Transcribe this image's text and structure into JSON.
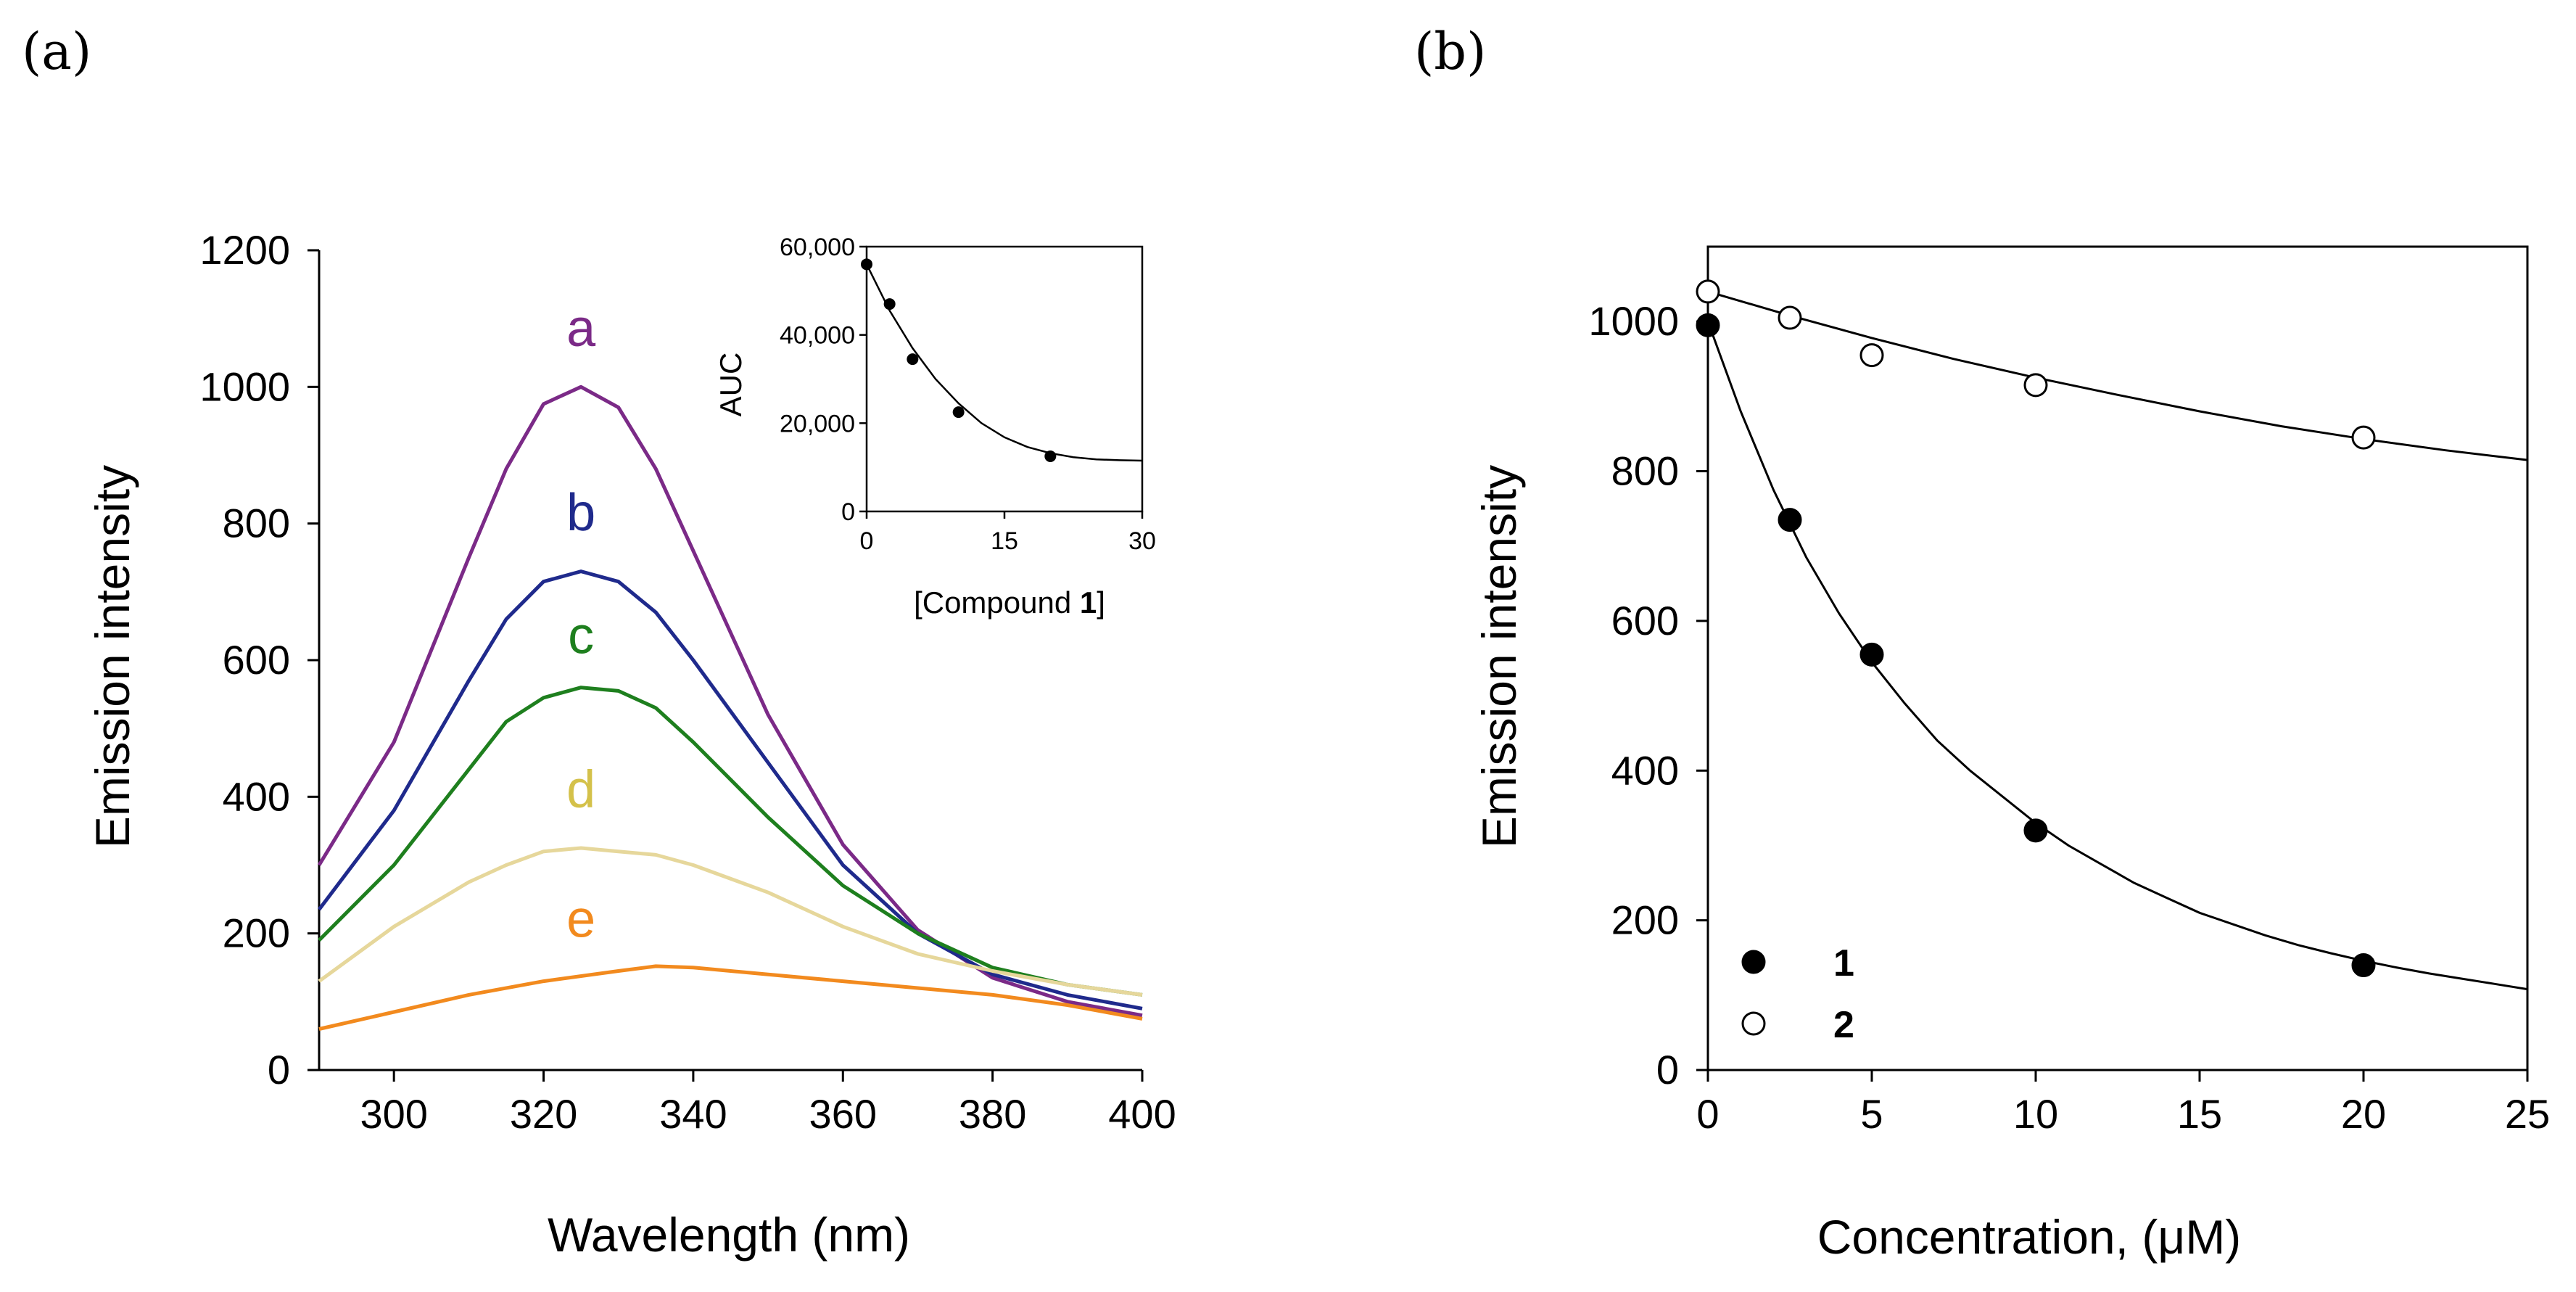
{
  "panels": {
    "a": {
      "label": "(a)"
    },
    "b": {
      "label": "(b)"
    }
  },
  "chart_data": [
    {
      "id": "a",
      "type": "line",
      "title": "",
      "xlabel": "Wavelength (nm)",
      "ylabel": "Emission intensity",
      "xlim": [
        290,
        400
      ],
      "ylim": [
        0,
        1200
      ],
      "xticks": [
        300,
        320,
        340,
        360,
        380,
        400
      ],
      "yticks": [
        0,
        200,
        400,
        600,
        800,
        1000,
        1200
      ],
      "grid": false,
      "series": [
        {
          "name": "a",
          "color": "#7B2A87",
          "x": [
            290,
            300,
            310,
            315,
            320,
            325,
            330,
            335,
            340,
            350,
            360,
            370,
            380,
            390,
            400
          ],
          "y": [
            300,
            480,
            750,
            880,
            975,
            1000,
            970,
            880,
            760,
            520,
            330,
            205,
            135,
            100,
            80
          ]
        },
        {
          "name": "b",
          "color": "#1F2A8C",
          "x": [
            290,
            300,
            310,
            315,
            320,
            325,
            330,
            335,
            340,
            350,
            360,
            370,
            380,
            390,
            400
          ],
          "y": [
            235,
            380,
            570,
            660,
            715,
            730,
            715,
            670,
            600,
            450,
            300,
            200,
            140,
            110,
            90
          ]
        },
        {
          "name": "c",
          "color": "#1E7F1E",
          "x": [
            290,
            300,
            310,
            315,
            320,
            325,
            330,
            335,
            340,
            350,
            360,
            370,
            380,
            390,
            400
          ],
          "y": [
            190,
            300,
            440,
            510,
            545,
            560,
            555,
            530,
            480,
            370,
            270,
            200,
            150,
            125,
            110
          ]
        },
        {
          "name": "d",
          "color": "#E6D79B",
          "x": [
            290,
            300,
            310,
            315,
            320,
            325,
            330,
            335,
            340,
            350,
            360,
            370,
            380,
            390,
            400
          ],
          "y": [
            130,
            210,
            275,
            300,
            320,
            325,
            320,
            315,
            300,
            260,
            210,
            170,
            145,
            125,
            110
          ]
        },
        {
          "name": "e",
          "color": "#F28A1E",
          "x": [
            290,
            300,
            310,
            320,
            330,
            335,
            340,
            350,
            360,
            370,
            380,
            390,
            400
          ],
          "y": [
            60,
            85,
            110,
            130,
            145,
            152,
            150,
            140,
            130,
            120,
            110,
            95,
            75
          ]
        }
      ],
      "annotations": [
        {
          "text": "a",
          "x": 325,
          "y": 1060,
          "color": "#7B2A87"
        },
        {
          "text": "b",
          "x": 325,
          "y": 790,
          "color": "#1F2A8C"
        },
        {
          "text": "c",
          "x": 325,
          "y": 610,
          "color": "#1E7F1E"
        },
        {
          "text": "d",
          "x": 325,
          "y": 385,
          "color": "#D4C14A"
        },
        {
          "text": "e",
          "x": 325,
          "y": 195,
          "color": "#F28A1E"
        }
      ],
      "inset": {
        "type": "line",
        "xlabel": "[Compound 1]",
        "xlabel_prefix": "[Compound ",
        "xlabel_bold": "1",
        "xlabel_suffix": "]",
        "ylabel": "AUC",
        "xlim": [
          0,
          30
        ],
        "ylim": [
          0,
          60000
        ],
        "xticks": [
          0,
          15,
          30
        ],
        "yticks": [
          0,
          20000,
          40000,
          60000
        ],
        "ytick_labels": [
          "0",
          "20,000",
          "40,000",
          "60,000"
        ],
        "points": {
          "x": [
            0,
            2.5,
            5,
            10,
            20
          ],
          "y": [
            56000,
            47000,
            34500,
            22500,
            12500
          ]
        },
        "fit": {
          "x": [
            0,
            2.5,
            5,
            7.5,
            10,
            12.5,
            15,
            17.5,
            20,
            22.5,
            25,
            27.5,
            30
          ],
          "y": [
            56000,
            45500,
            37000,
            30000,
            24500,
            20000,
            16800,
            14600,
            13200,
            12300,
            11800,
            11600,
            11500
          ]
        }
      }
    },
    {
      "id": "b",
      "type": "scatter",
      "title": "",
      "xlabel": "Concentration, (μM)",
      "ylabel": "Emission intensity",
      "xlim": [
        0,
        25
      ],
      "ylim": [
        0,
        1100
      ],
      "xticks": [
        0,
        5,
        10,
        15,
        20,
        25
      ],
      "yticks": [
        0,
        200,
        400,
        600,
        800,
        1000
      ],
      "grid": false,
      "legend": "bottom-left",
      "series": [
        {
          "name": "1",
          "marker": "filled",
          "x": [
            0,
            2.5,
            5,
            10,
            20
          ],
          "y": [
            995,
            735,
            555,
            320,
            140
          ],
          "fit": {
            "x": [
              0,
              1,
              2,
              3,
              4,
              5,
              6,
              7,
              8,
              9,
              10,
              11,
              12,
              13,
              14,
              15,
              16,
              17,
              18,
              19,
              20,
              21,
              22,
              23,
              24,
              25
            ],
            "y": [
              1000,
              880,
              775,
              685,
              610,
              545,
              490,
              440,
              400,
              365,
              330,
              300,
              275,
              250,
              230,
              210,
              195,
              180,
              167,
              156,
              146,
              137,
              129,
              122,
              115,
              108
            ]
          }
        },
        {
          "name": "2",
          "marker": "open",
          "x": [
            0,
            2.5,
            5,
            10,
            20
          ],
          "y": [
            1040,
            1005,
            955,
            915,
            845
          ],
          "fit": {
            "x": [
              0,
              2.5,
              5,
              7.5,
              10,
              12.5,
              15,
              17.5,
              20,
              22.5,
              25
            ],
            "y": [
              1040,
              1008,
              978,
              950,
              925,
              902,
              880,
              860,
              843,
              828,
              815
            ]
          }
        }
      ]
    }
  ]
}
